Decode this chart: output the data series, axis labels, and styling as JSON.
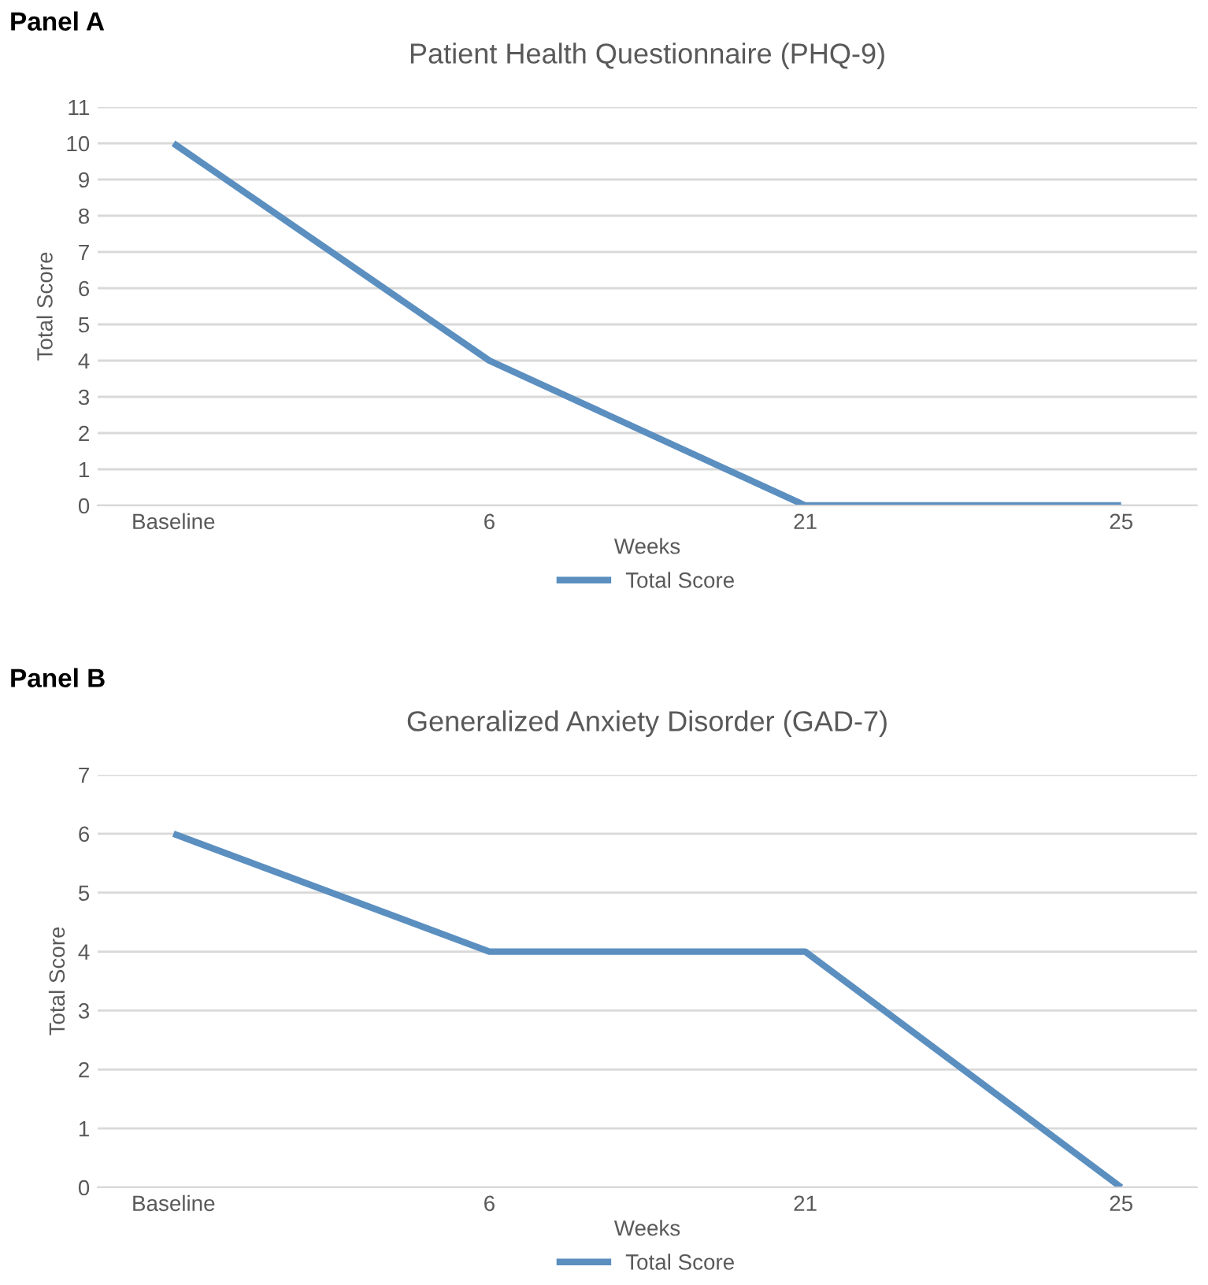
{
  "chart_data": [
    {
      "type": "line",
      "title": "Patient Health Questionnaire (PHQ-9)",
      "xlabel": "Weeks",
      "ylabel": "Total Score",
      "categories": [
        "Baseline",
        "6",
        "21",
        "25"
      ],
      "series": [
        {
          "name": "Total Score",
          "color": "#5b8fc0",
          "values": [
            10,
            4,
            0,
            0
          ]
        }
      ],
      "ylim": [
        0,
        11
      ],
      "yticks": [
        0,
        1,
        2,
        3,
        4,
        5,
        6,
        7,
        8,
        9,
        10,
        11
      ],
      "grid": "y",
      "legend": "bottom",
      "annotations": [
        "Panel A"
      ]
    },
    {
      "type": "line",
      "title": "Generalized Anxiety Disorder (GAD-7)",
      "xlabel": "Weeks",
      "ylabel": "Total Score",
      "categories": [
        "Baseline",
        "6",
        "21",
        "25"
      ],
      "series": [
        {
          "name": "Total Score",
          "color": "#5b8fc0",
          "values": [
            6,
            4,
            4,
            0
          ]
        }
      ],
      "ylim": [
        0,
        7
      ],
      "yticks": [
        0,
        1,
        2,
        3,
        4,
        5,
        6,
        7
      ],
      "grid": "y",
      "legend": "bottom",
      "annotations": [
        "Panel B"
      ]
    }
  ]
}
